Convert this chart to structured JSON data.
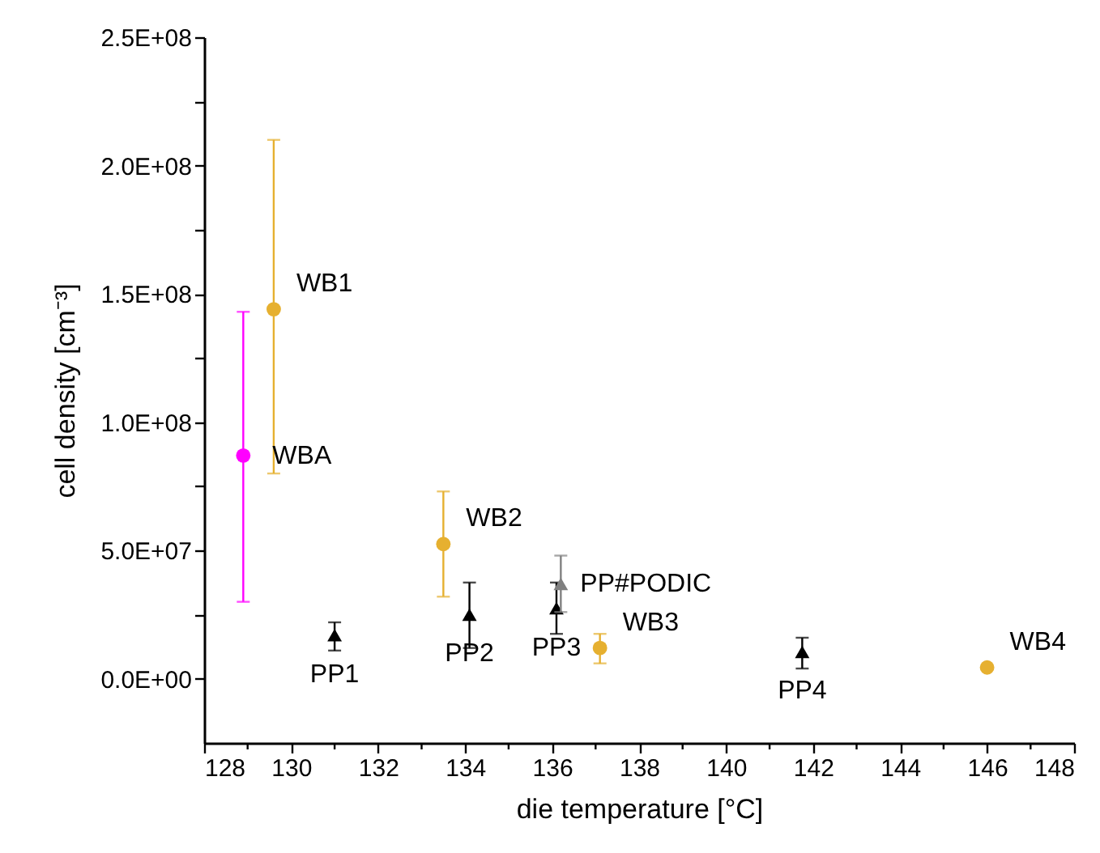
{
  "chart_data": {
    "type": "scatter",
    "xlabel": "die temperature [°C]",
    "ylabel": "cell density [cm⁻³]",
    "xlim": [
      128,
      148
    ],
    "ylim": [
      -25000000,
      250000000
    ],
    "xticks": [
      128,
      {
        "value": 129,
        "label": null
      },
      130,
      {
        "value": 131,
        "label": null
      },
      132,
      {
        "value": 133,
        "label": null
      },
      134,
      {
        "value": 135,
        "label": null
      },
      136,
      {
        "value": 137,
        "label": null
      },
      138,
      {
        "value": 139,
        "label": null
      },
      140,
      {
        "value": 141,
        "label": null
      },
      142,
      {
        "value": 143,
        "label": null
      },
      144,
      {
        "value": 145,
        "label": null
      },
      146,
      {
        "value": 147,
        "label": null
      },
      148
    ],
    "yticks": [
      {
        "value": 0,
        "label": "0.0E+00"
      },
      {
        "value": 25000000,
        "label": null
      },
      {
        "value": 50000000,
        "label": "5.0E+07"
      },
      {
        "value": 75000000,
        "label": null
      },
      {
        "value": 100000000,
        "label": "1.0E+08"
      },
      {
        "value": 125000000,
        "label": null
      },
      {
        "value": 150000000,
        "label": "1.5E+08"
      },
      {
        "value": 175000000,
        "label": null
      },
      {
        "value": 200000000,
        "label": "2.0E+08"
      },
      {
        "value": 225000000,
        "label": null
      },
      {
        "value": 250000000,
        "label": "2.5E+08"
      }
    ],
    "grid": false,
    "series": [
      {
        "color": "#ff00ff",
        "marker": "circle",
        "x": [
          128.9
        ],
        "values": [
          87000000
        ],
        "errors": [
          [
            30000000,
            143000000
          ]
        ]
      },
      {
        "color": "#e6b030",
        "marker": "circle",
        "x": [
          129.6,
          133.5,
          137.1,
          146
        ],
        "values": [
          144000000,
          52500000,
          12000000,
          4400000
        ],
        "errors": [
          [
            80000000,
            210000000
          ],
          [
            32000000,
            73000000
          ],
          [
            6000000,
            17500000
          ],
          null
        ]
      },
      {
        "color": "#000000",
        "marker": "triangle",
        "x": [
          131,
          134.1,
          136.1,
          141.75
        ],
        "values": [
          17000000,
          25000000,
          27500000,
          10500000
        ],
        "errors": [
          [
            11000000,
            22000000
          ],
          [
            12000000,
            37500000
          ],
          [
            17500000,
            37500000
          ],
          [
            4000000,
            16000000
          ]
        ]
      },
      {
        "color": "#808080",
        "marker": "triangle",
        "x": [
          136.2
        ],
        "values": [
          37000000
        ],
        "errors": [
          [
            26000000,
            48000000
          ]
        ]
      }
    ],
    "annotations": [
      {
        "text": "WBA",
        "x": 128.9,
        "y": 87000000
      },
      {
        "text": "WB1",
        "x": 129.6,
        "y": 144000000
      },
      {
        "text": "WB2",
        "x": 133.5,
        "y": 52500000
      },
      {
        "text": "WB3",
        "x": 137.1,
        "y": 12000000
      },
      {
        "text": "WB4",
        "x": 146,
        "y": 4400000
      },
      {
        "text": "PP1",
        "x": 131,
        "y": 17000000
      },
      {
        "text": "PP2",
        "x": 134.1,
        "y": 25000000
      },
      {
        "text": "PP3",
        "x": 136.1,
        "y": 27500000
      },
      {
        "text": "PP4",
        "x": 141.75,
        "y": 10500000
      },
      {
        "text": "PP#PODIC",
        "x": 136.2,
        "y": 37000000
      }
    ]
  }
}
